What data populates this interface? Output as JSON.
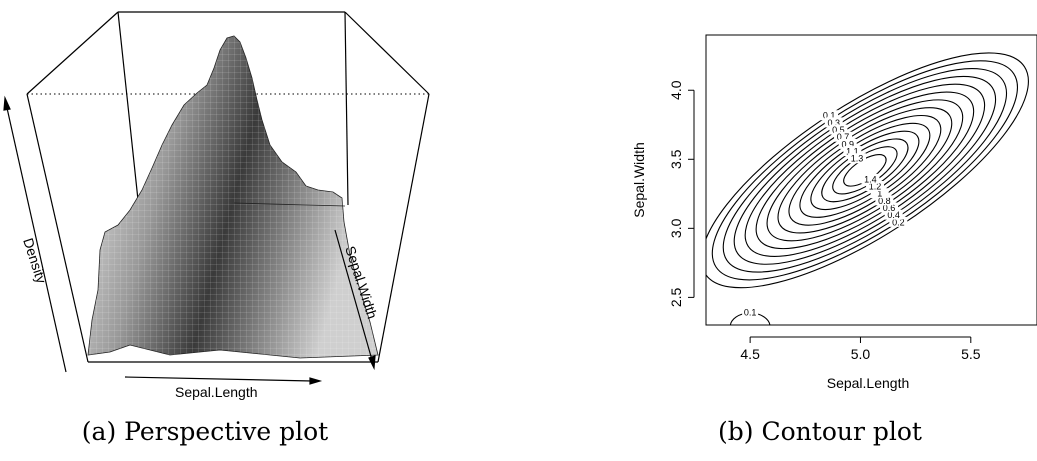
{
  "figure": {
    "caption_a": "(a) Perspective plot",
    "caption_b": "(b) Contour plot"
  },
  "chart_data": [
    {
      "type": "surface",
      "xlabel": "Sepal.Length",
      "ylabel": "Sepal.Width",
      "zlabel": "Density",
      "grid": false,
      "colors": {
        "surface_light": "#f2f2f2",
        "surface_dark": "#303030",
        "box": "#000000"
      }
    },
    {
      "type": "contour",
      "xlabel": "Sepal.Length",
      "ylabel": "Sepal.Width",
      "xlim": [
        4.3,
        5.8
      ],
      "ylim": [
        2.3,
        4.4
      ],
      "xticks": [
        "4.5",
        "5.0",
        "5.5"
      ],
      "yticks": [
        "2.5",
        "3.0",
        "3.5",
        "4.0"
      ],
      "grid": false,
      "levels": [
        0.1,
        0.2,
        0.3,
        0.4,
        0.5,
        0.6,
        0.7,
        0.8,
        0.9,
        1,
        1.1,
        1.2,
        1.3,
        1.4
      ],
      "peak": {
        "x": 5.02,
        "y": 3.42,
        "value": 1.45
      },
      "secondary_bump": {
        "x": 4.5,
        "y": 2.3,
        "value": 0.12
      }
    }
  ]
}
